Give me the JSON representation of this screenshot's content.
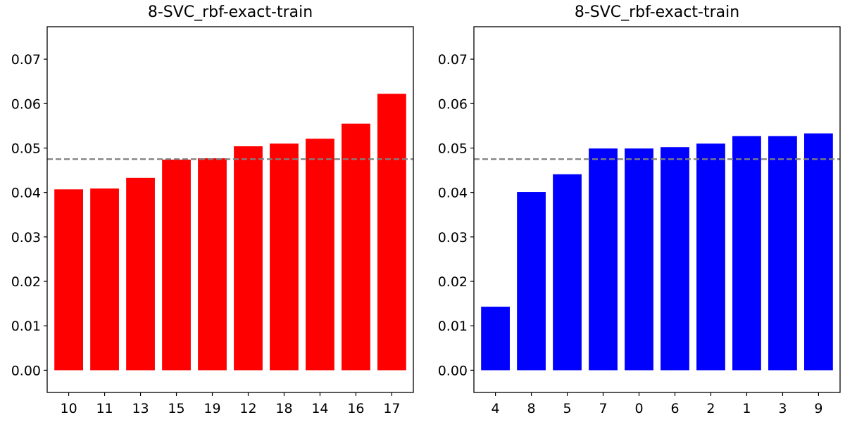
{
  "chart_data": [
    {
      "type": "bar",
      "title": "8-SVC_rbf-exact-train",
      "categories": [
        "10",
        "11",
        "13",
        "15",
        "19",
        "12",
        "18",
        "14",
        "16",
        "17"
      ],
      "values": [
        0.0407,
        0.0409,
        0.0433,
        0.0474,
        0.0477,
        0.0504,
        0.051,
        0.0521,
        0.0555,
        0.0622
      ],
      "bar_color": "#ff0000",
      "reference_line": 0.0475,
      "reference_color": "#808080",
      "xlabel": "",
      "ylabel": "",
      "ylim": [
        -0.005,
        0.0773
      ],
      "yticks": [
        0.0,
        0.01,
        0.02,
        0.03,
        0.04,
        0.05,
        0.06,
        0.07
      ],
      "ytick_labels": [
        "0.00",
        "0.01",
        "0.02",
        "0.03",
        "0.04",
        "0.05",
        "0.06",
        "0.07"
      ],
      "grid": false
    },
    {
      "type": "bar",
      "title": "8-SVC_rbf-exact-train",
      "categories": [
        "4",
        "8",
        "5",
        "7",
        "0",
        "6",
        "2",
        "1",
        "3",
        "9"
      ],
      "values": [
        0.0143,
        0.0401,
        0.0441,
        0.0499,
        0.0499,
        0.0502,
        0.051,
        0.0527,
        0.0527,
        0.0533
      ],
      "bar_color": "#0000ff",
      "reference_line": 0.0475,
      "reference_color": "#808080",
      "xlabel": "",
      "ylabel": "",
      "ylim": [
        -0.005,
        0.0773
      ],
      "yticks": [
        0.0,
        0.01,
        0.02,
        0.03,
        0.04,
        0.05,
        0.06,
        0.07
      ],
      "ytick_labels": [
        "0.00",
        "0.01",
        "0.02",
        "0.03",
        "0.04",
        "0.05",
        "0.06",
        "0.07"
      ],
      "grid": false
    }
  ]
}
